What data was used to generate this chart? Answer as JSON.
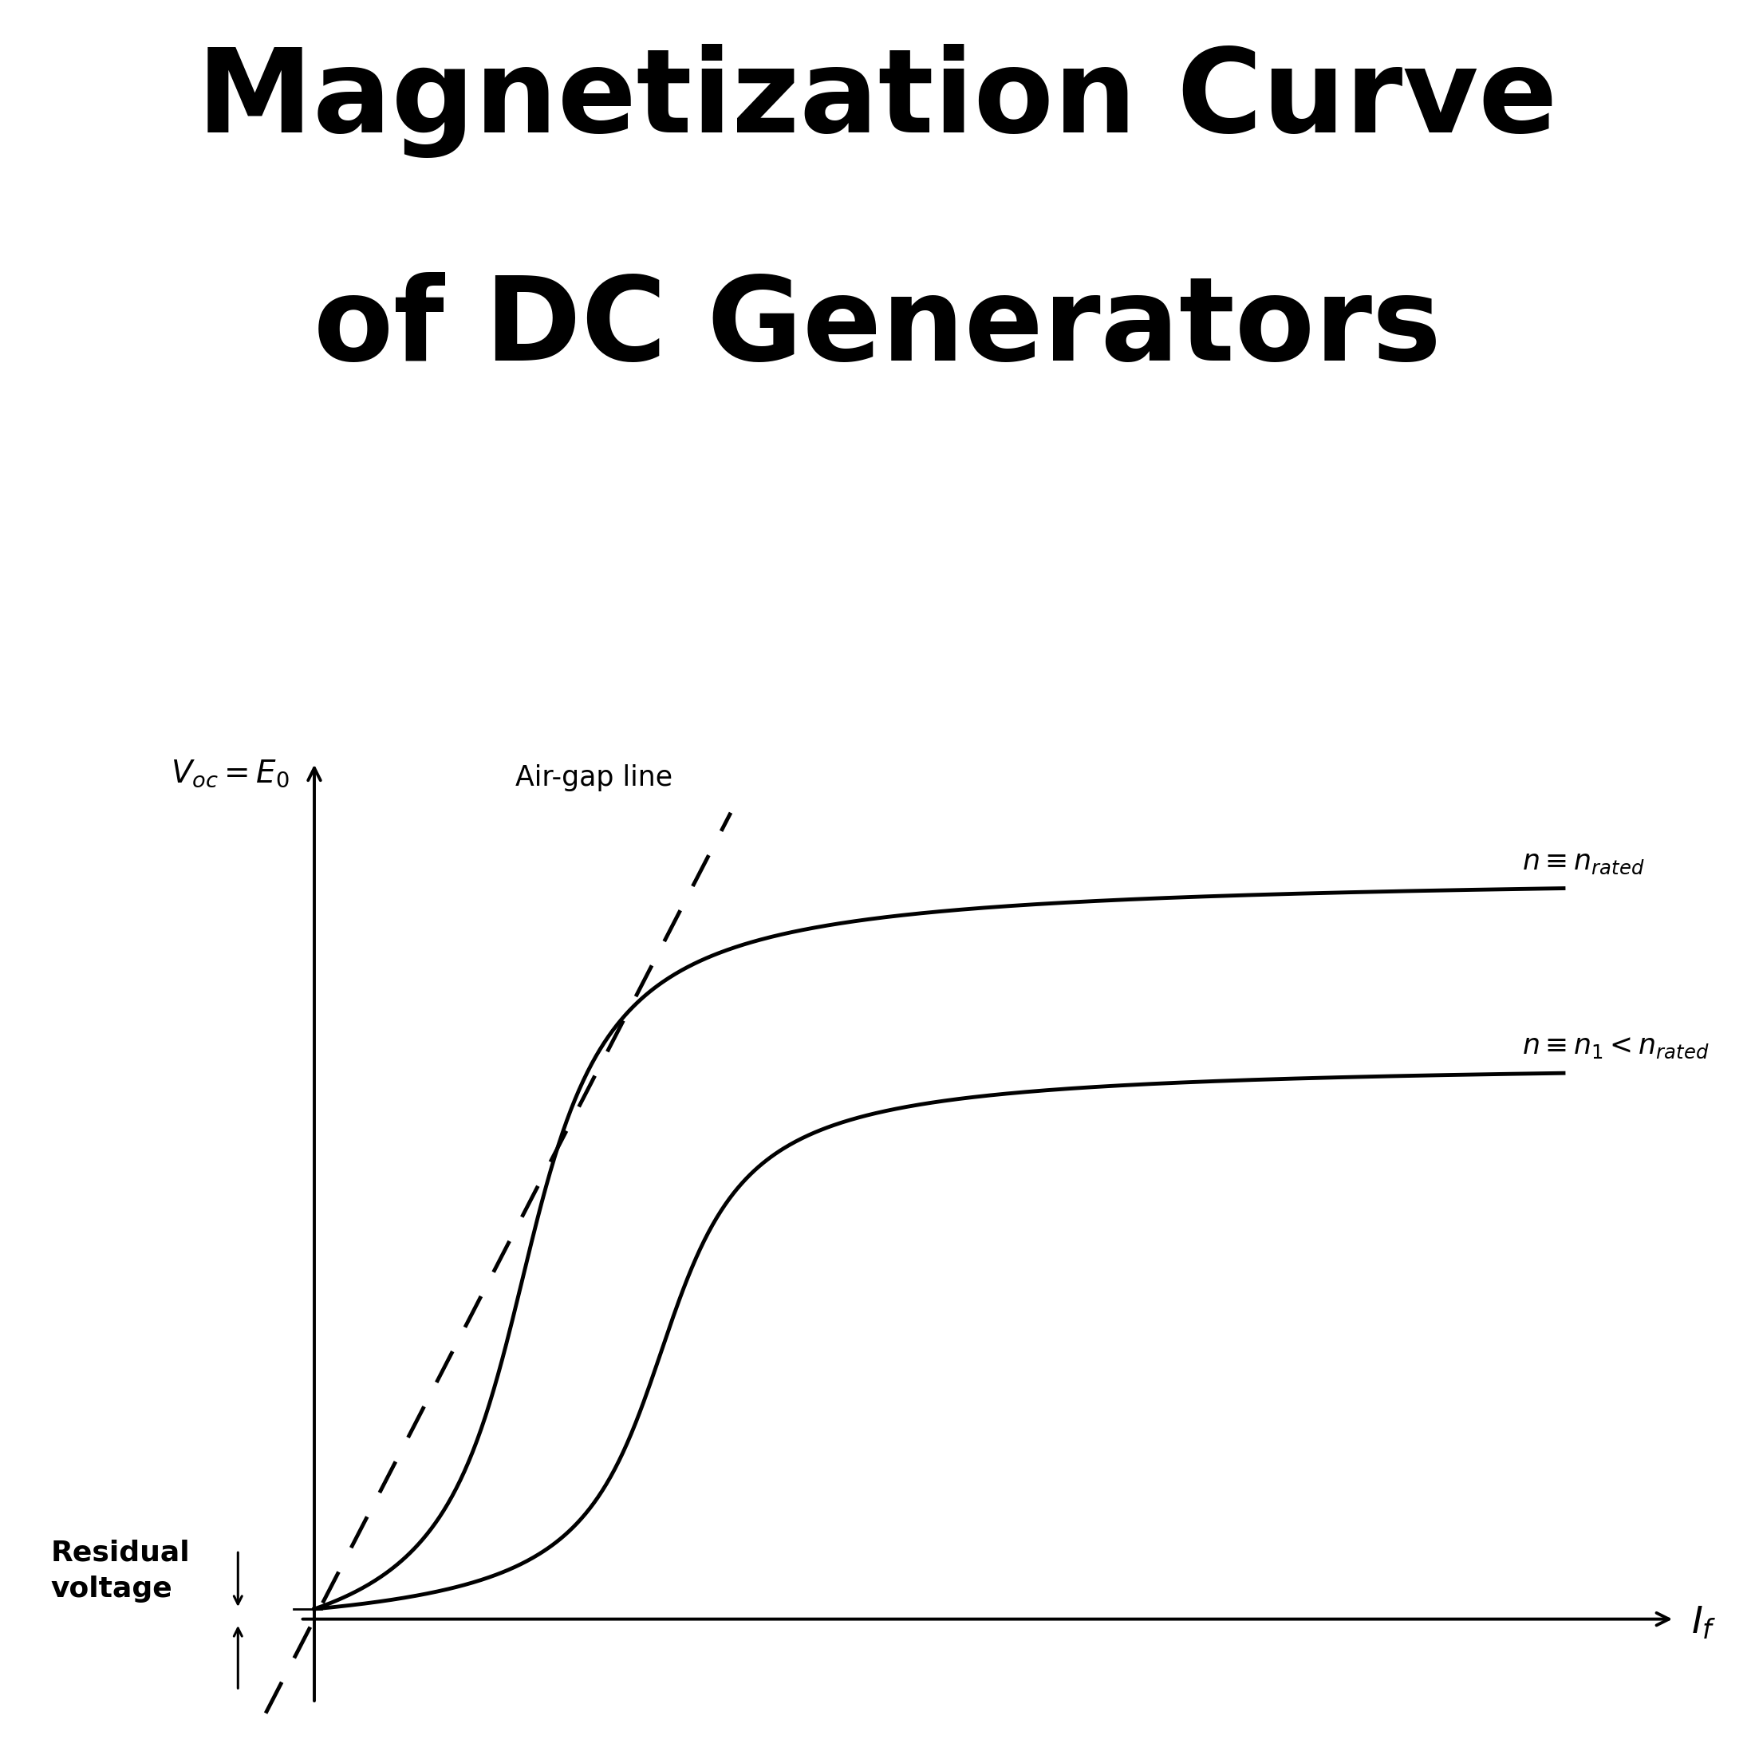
{
  "title_line1": "Magnetization Curve",
  "title_line2": "of DC Generators",
  "title_fontsize": 105,
  "title_fontweight": "bold",
  "title_fontstyle": "normal",
  "background_color": "#ffffff",
  "axis_color": "#000000",
  "curve_linewidth": 3.5,
  "air_gap_label": "Air-gap line",
  "residual_voltage": 0.12,
  "xlim": [
    -0.5,
    10.5
  ],
  "ylim": [
    -1.2,
    10.5
  ],
  "ox": 0.5,
  "oy": 0.0,
  "x_end": 9.8
}
